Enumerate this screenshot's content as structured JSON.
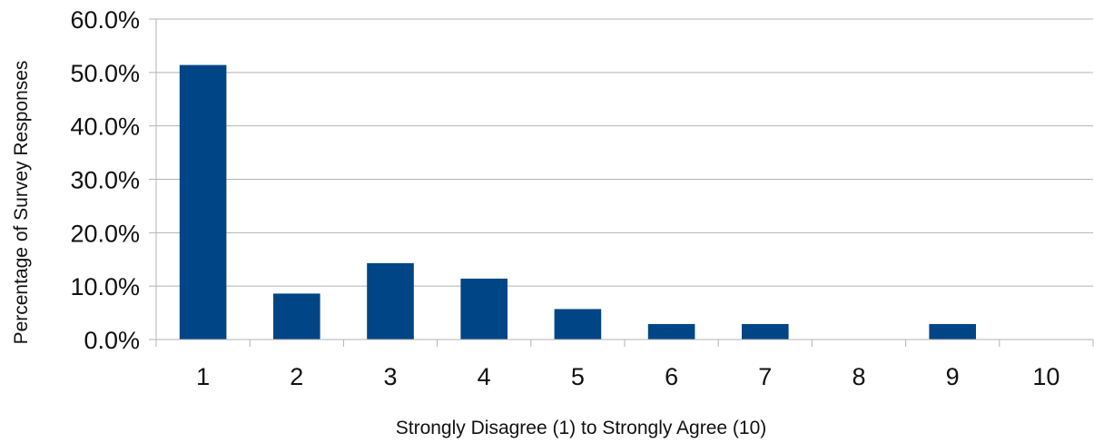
{
  "chart_data": {
    "type": "bar",
    "title": "",
    "xlabel": "Strongly Disagree (1) to Strongly Agree (10)",
    "ylabel": "Percentage of Survey Responses",
    "categories": [
      "1",
      "2",
      "3",
      "4",
      "5",
      "6",
      "7",
      "8",
      "9",
      "10"
    ],
    "values": [
      51.4,
      8.6,
      14.3,
      11.4,
      5.7,
      2.9,
      2.9,
      0.0,
      2.9,
      0.0
    ],
    "ylim": [
      0,
      60
    ],
    "y_ticks": [
      "0.0%",
      "10.0%",
      "20.0%",
      "30.0%",
      "40.0%",
      "50.0%",
      "60.0%"
    ],
    "y_tick_values": [
      0,
      10,
      20,
      30,
      40,
      50,
      60
    ],
    "grid": true,
    "legend": "none",
    "bar_color": "#004586",
    "grid_color": "#b3b3b3"
  }
}
